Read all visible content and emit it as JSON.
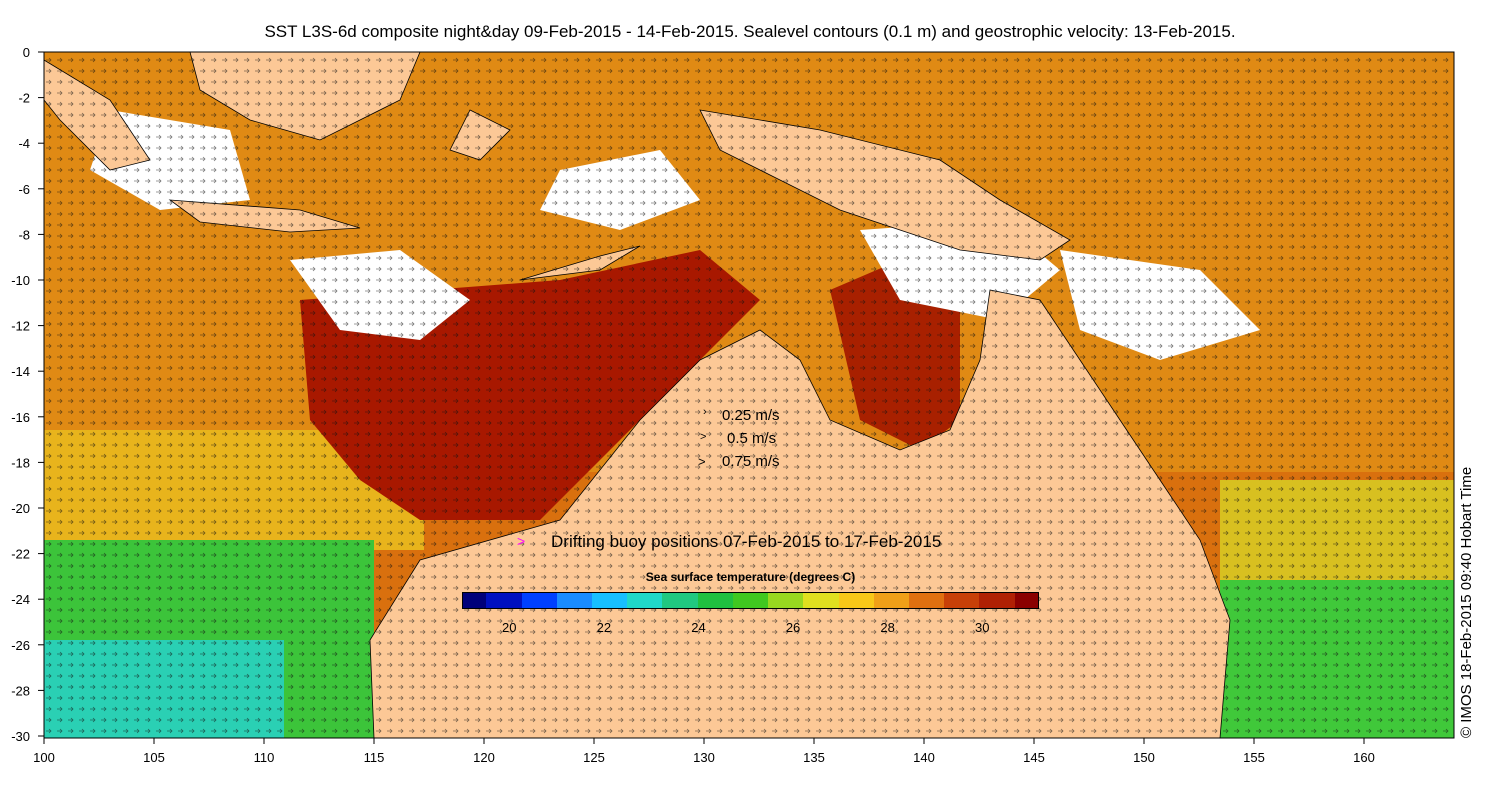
{
  "title": "SST L3S-6d composite night&day 09-Feb-2015 - 14-Feb-2015. Sealevel contours (0.1 m) and geostrophic velocity: 13-Feb-2015.",
  "credit": "© IMOS 18-Feb-2015 09:40 Hobart Time",
  "axes": {
    "x_ticks": [
      "100",
      "105",
      "110",
      "115",
      "120",
      "125",
      "130",
      "135",
      "140",
      "145",
      "150",
      "155",
      "160"
    ],
    "y_ticks": [
      "0",
      "-2",
      "-4",
      "-6",
      "-8",
      "-10",
      "-12",
      "-14",
      "-16",
      "-18",
      "-20",
      "-22",
      "-24",
      "-26",
      "-28",
      "-30"
    ]
  },
  "legend": {
    "speeds": [
      {
        "symbol": "›",
        "label": "0.25 m/s"
      },
      {
        "symbol": ">",
        "label": "0.5 m/s"
      },
      {
        "symbol": ">",
        "label": "0.75 m/s"
      }
    ],
    "buoy_symbol": ">",
    "buoy_label": "Drifting buoy positions 07-Feb-2015 to 17-Feb-2015"
  },
  "colorbar": {
    "title": "Sea surface temperature (degrees C)",
    "ticks": [
      "20",
      "22",
      "24",
      "26",
      "28",
      "30"
    ],
    "min": 19,
    "max": 31.2
  },
  "colors": {
    "land": "#fcc896",
    "cloud": "#ffffff",
    "buoy": "#ff00ff"
  }
}
